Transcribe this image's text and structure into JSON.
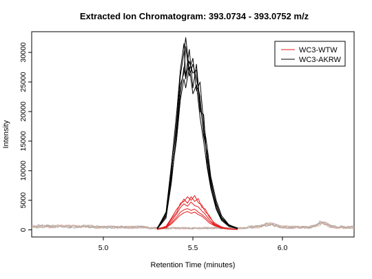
{
  "chart_data": {
    "type": "line",
    "title": "Extracted Ion Chromatogram: 393.0734 - 393.0752 m/z",
    "xlabel": "Retention Time (minutes)",
    "ylabel": "Intensity",
    "xlim": [
      4.6,
      6.4
    ],
    "ylim": [
      -1200,
      33500
    ],
    "x_ticks": [
      5.0,
      5.5,
      6.0
    ],
    "x_tick_labels": [
      "5.0",
      "5.5",
      "6.0"
    ],
    "y_ticks": [
      0,
      5000,
      10000,
      15000,
      20000,
      25000,
      30000
    ],
    "y_tick_labels": [
      "0",
      "5000",
      "10000",
      "15000",
      "20000",
      "25000",
      "30000"
    ],
    "grid": false,
    "legend_position": "top-right",
    "legend": [
      {
        "label": "WC3-WTW",
        "color": "#e41a1c"
      },
      {
        "label": "WC3-AKRW",
        "color": "#000000"
      }
    ],
    "series": [
      {
        "name": "WC3-AKRW",
        "color": "#000000",
        "replicates": [
          {
            "x": [
              5.3,
              5.35,
              5.38,
              5.41,
              5.43,
              5.45,
              5.46,
              5.48,
              5.5,
              5.52,
              5.54,
              5.56,
              5.58,
              5.6,
              5.63,
              5.66,
              5.7,
              5.75
            ],
            "y": [
              200,
              3000,
              11000,
              20000,
              27000,
              31500,
              26000,
              30500,
              24000,
              28000,
              21000,
              17000,
              12000,
              8000,
              4500,
              2000,
              800,
              300
            ]
          },
          {
            "x": [
              5.3,
              5.35,
              5.38,
              5.41,
              5.43,
              5.45,
              5.46,
              5.48,
              5.5,
              5.52,
              5.54,
              5.56,
              5.58,
              5.6,
              5.63,
              5.66,
              5.7,
              5.75
            ],
            "y": [
              300,
              2500,
              9500,
              18500,
              26000,
              30000,
              32500,
              27000,
              29000,
              23500,
              25000,
              18000,
              14000,
              9000,
              5000,
              2400,
              900,
              200
            ]
          },
          {
            "x": [
              5.3,
              5.35,
              5.38,
              5.41,
              5.43,
              5.45,
              5.46,
              5.48,
              5.5,
              5.52,
              5.54,
              5.56,
              5.58,
              5.6,
              5.63,
              5.66,
              5.7,
              5.75
            ],
            "y": [
              150,
              2000,
              8000,
              16500,
              23000,
              27500,
              25500,
              28500,
              26500,
              27000,
              20000,
              19500,
              11000,
              7500,
              3800,
              1800,
              700,
              250
            ]
          },
          {
            "x": [
              5.3,
              5.35,
              5.38,
              5.41,
              5.43,
              5.45,
              5.46,
              5.48,
              5.5,
              5.52,
              5.54,
              5.56,
              5.58,
              5.6,
              5.63,
              5.66,
              5.7,
              5.75
            ],
            "y": [
              250,
              2800,
              10000,
              17500,
              24500,
              26500,
              31000,
              26000,
              28000,
              25500,
              22500,
              16000,
              13000,
              8500,
              4200,
              2100,
              850,
              300
            ]
          },
          {
            "x": [
              5.3,
              5.35,
              5.38,
              5.41,
              5.43,
              5.45,
              5.46,
              5.48,
              5.5,
              5.52,
              5.54,
              5.56,
              5.58,
              5.6,
              5.63,
              5.66,
              5.7,
              5.75
            ],
            "y": [
              200,
              2300,
              8800,
              15500,
              22000,
              25500,
              24000,
              27500,
              23000,
              24500,
              19000,
              15000,
              10500,
              7000,
              3500,
              1600,
              600,
              200
            ]
          }
        ]
      },
      {
        "name": "WC3-WTW",
        "color": "#e41a1c",
        "replicates": [
          {
            "x": [
              5.3,
              5.35,
              5.38,
              5.41,
              5.43,
              5.45,
              5.47,
              5.49,
              5.51,
              5.53,
              5.55,
              5.57,
              5.59,
              5.62,
              5.66,
              5.7,
              5.75
            ],
            "y": [
              100,
              600,
              2000,
              3500,
              4200,
              5200,
              4500,
              5600,
              4800,
              5300,
              3800,
              3500,
              2200,
              1200,
              500,
              200,
              100
            ]
          },
          {
            "x": [
              5.3,
              5.35,
              5.38,
              5.41,
              5.43,
              5.45,
              5.47,
              5.49,
              5.51,
              5.53,
              5.55,
              5.57,
              5.59,
              5.62,
              5.66,
              5.7,
              5.75
            ],
            "y": [
              80,
              500,
              1800,
              3000,
              4500,
              4800,
              5600,
              5000,
              5800,
              4600,
              4200,
              3000,
              2500,
              1000,
              400,
              150,
              80
            ]
          },
          {
            "x": [
              5.3,
              5.35,
              5.38,
              5.41,
              5.43,
              5.45,
              5.47,
              5.49,
              5.51,
              5.53,
              5.55,
              5.57,
              5.59,
              5.62,
              5.66,
              5.7,
              5.75
            ],
            "y": [
              100,
              400,
              1200,
              2200,
              3000,
              3400,
              3600,
              3300,
              3500,
              3000,
              2600,
              2100,
              1500,
              800,
              350,
              150,
              80
            ]
          },
          {
            "x": [
              5.3,
              5.35,
              5.38,
              5.41,
              5.43,
              5.45,
              5.47,
              5.49,
              5.51,
              5.53,
              5.55,
              5.57,
              5.59,
              5.62,
              5.66,
              5.7,
              5.75
            ],
            "y": [
              60,
              350,
              1000,
              1900,
              2500,
              2900,
              3100,
              2800,
              3000,
              2600,
              2300,
              1800,
              1200,
              700,
              300,
              120,
              60
            ]
          },
          {
            "x": [
              5.3,
              5.35,
              5.38,
              5.41,
              5.43,
              5.45,
              5.47,
              5.49,
              5.51,
              5.53,
              5.55,
              5.57,
              5.59,
              5.62,
              5.66,
              5.7,
              5.75
            ],
            "y": [
              90,
              450,
              1500,
              2700,
              3800,
              4400,
              4000,
              4700,
              4100,
              3900,
              3200,
              2600,
              1800,
              900,
              400,
              160,
              90
            ]
          }
        ]
      }
    ]
  }
}
